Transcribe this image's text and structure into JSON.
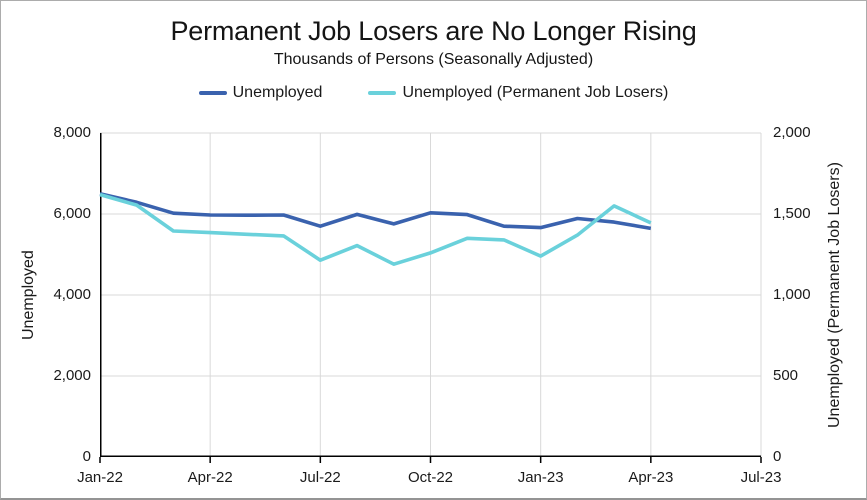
{
  "title": "Permanent Job Losers are No Longer Rising",
  "subtitle": "Thousands of Persons (Seasonally Adjusted)",
  "legend": [
    {
      "label": "Unemployed",
      "color": "#3A62AE"
    },
    {
      "label": "Unemployed (Permanent Job Losers)",
      "color": "#6AD1DB"
    }
  ],
  "colors": {
    "grid": "#D9D9D9",
    "axis": "#000000",
    "text": "#1A1A1A",
    "series_unemployed": "#3A62AE",
    "series_permanent": "#6AD1DB"
  },
  "chart_data": {
    "type": "line",
    "x": [
      "Jan-22",
      "Feb-22",
      "Mar-22",
      "Apr-22",
      "May-22",
      "Jun-22",
      "Jul-22",
      "Aug-22",
      "Sep-22",
      "Oct-22",
      "Nov-22",
      "Dec-22",
      "Jan-23",
      "Feb-23",
      "Mar-23",
      "Apr-23"
    ],
    "series": [
      {
        "name": "Unemployed",
        "axis": "left",
        "color": "#3A62AE",
        "values": [
          6500,
          6290,
          6020,
          5975,
          5970,
          5975,
          5700,
          5990,
          5755,
          6030,
          5985,
          5700,
          5665,
          5890,
          5800,
          5645
        ]
      },
      {
        "name": "Unemployed (Permanent Job Losers)",
        "axis": "right",
        "color": "#6AD1DB",
        "values": [
          1620,
          1555,
          1395,
          1385,
          1375,
          1365,
          1215,
          1305,
          1190,
          1260,
          1350,
          1340,
          1240,
          1370,
          1550,
          1445
        ]
      }
    ],
    "x_axis": {
      "tick_labels": [
        "Jan-22",
        "Apr-22",
        "Jul-22",
        "Oct-22",
        "Jan-23",
        "Apr-23",
        "Jul-23"
      ],
      "months_span": 18
    },
    "y_left": {
      "label": "Unemployed",
      "min": 0,
      "max": 8000,
      "ticks": [
        0,
        2000,
        4000,
        6000,
        8000
      ],
      "tick_labels": [
        "0",
        "2,000",
        "4,000",
        "6,000",
        "8,000"
      ]
    },
    "y_right": {
      "label": "Unemployed (Permanent Job Losers)",
      "min": 0,
      "max": 2000,
      "ticks": [
        0,
        500,
        1000,
        1500,
        2000
      ],
      "tick_labels": [
        "0",
        "500",
        "1,000",
        "1,500",
        "2,000"
      ]
    },
    "grid": true,
    "legend_position": "top"
  }
}
